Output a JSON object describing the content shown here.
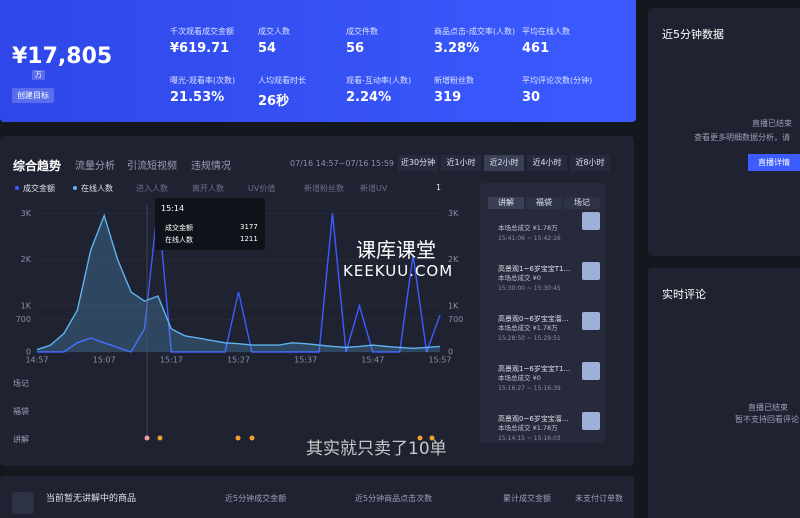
{
  "header": {
    "amount": "¥17,805",
    "amount_unit": "万",
    "button": "创建目标",
    "metrics": [
      {
        "label": "千次观看成交金额",
        "value": "¥619.71"
      },
      {
        "label": "成交人数",
        "value": "54"
      },
      {
        "label": "成交件数",
        "value": "56"
      },
      {
        "label": "商品点击-成交率(人数)",
        "value": "3.28%"
      },
      {
        "label": "平均在线人数",
        "value": "461"
      },
      {
        "label": "曝光-观看率(次数)",
        "value": "21.53%"
      },
      {
        "label": "人均观看时长",
        "value": "26秒"
      },
      {
        "label": "观看-互动率(人数)",
        "value": "2.24%"
      },
      {
        "label": "新增粉丝数",
        "value": "319"
      },
      {
        "label": "平均评论次数(分钟)",
        "value": "30"
      }
    ]
  },
  "tabs": [
    "综合趋势",
    "流量分析",
    "引流短视频",
    "违规情况"
  ],
  "date_range": "07/16 14:57~07/16 15:59",
  "ranges": [
    "近30分钟",
    "近1小时",
    "近2小时",
    "近4小时",
    "近8小时"
  ],
  "extra_legend": [
    "进入人数",
    "离开人数",
    "UV价值",
    "新增粉丝数",
    "新增UV"
  ],
  "pager": "1",
  "event_rows": [
    "场记",
    "福袋",
    "讲解"
  ],
  "tooltip": {
    "time": "15:14",
    "items": [
      {
        "name": "成交金额",
        "value": "3177"
      },
      {
        "name": "在线人数",
        "value": "1211"
      }
    ]
  },
  "chart_data": {
    "type": "line",
    "categories": [
      "14:57",
      null,
      null,
      null,
      null,
      "15:07",
      null,
      null,
      null,
      null,
      "15:17",
      null,
      null,
      null,
      null,
      "15:27",
      null,
      null,
      null,
      null,
      "15:37",
      null,
      null,
      null,
      null,
      "15:47",
      null,
      null,
      null,
      null,
      "15:57"
    ],
    "series": [
      {
        "name": "成交金额",
        "color": "#3d5cff",
        "values": [
          0,
          0,
          0,
          200,
          300,
          200,
          100,
          0,
          500,
          3177,
          0,
          0,
          0,
          0,
          0,
          1300,
          0,
          0,
          0,
          0,
          0,
          0,
          3000,
          0,
          1000,
          0,
          0,
          0,
          2100,
          0,
          800
        ]
      },
      {
        "name": "在线人数",
        "color": "#5fb4f0",
        "axis": "y2",
        "values": [
          50,
          150,
          400,
          900,
          2200,
          2950,
          2000,
          1300,
          1100,
          1211,
          500,
          350,
          300,
          250,
          200,
          180,
          150,
          150,
          150,
          200,
          180,
          150,
          120,
          100,
          120,
          150,
          120,
          100,
          80,
          100,
          120
        ]
      }
    ],
    "ylim": [
      0,
      3200
    ],
    "yticks": [
      0,
      700,
      {
        "value": 1000,
        "label": "1K"
      },
      {
        "value": 2000,
        "label": "2K"
      },
      {
        "value": 3000,
        "label": "3K"
      }
    ],
    "y2lim": [
      0,
      3200
    ],
    "y2ticks": [
      0,
      700,
      {
        "value": 1000,
        "label": "1K"
      },
      {
        "value": 2000,
        "label": "2K"
      },
      {
        "value": 3000,
        "label": "3K"
      }
    ],
    "grid": true
  },
  "side_list": {
    "tabs": [
      "讲解",
      "福袋",
      "场记"
    ],
    "items": [
      {
        "title": null,
        "sales": "本场总成交 ¥1.78万",
        "time": "15:41:06 ~ 15:42:16"
      },
      {
        "title": "高景观1~6岁宝宝T1...",
        "sales": "本场总成交 ¥0",
        "time": "15:30:00 ~ 15:30:45"
      },
      {
        "title": "高景观0~6岁宝宝溜...",
        "sales": "本场总成交 ¥1.78万",
        "time": "15:28:50 ~ 15:29:51"
      },
      {
        "title": "高景观1~6岁宝宝T1...",
        "sales": "本场总成交 ¥0",
        "time": "15:16:27 ~ 15:16:39"
      },
      {
        "title": "高景观0~6岁宝宝溜...",
        "sales": "本场总成交 ¥1.78万",
        "time": "15:14:15 ~ 15:16:03"
      }
    ]
  },
  "panel_recent": {
    "title": "近5分钟数据",
    "status": "直播已结束",
    "hint": "查看更多明细数据分析，请",
    "button": "直播详情"
  },
  "panel_comments": {
    "title": "实时评论",
    "status": "直播已结束",
    "hint": "暂不支持回看评论"
  },
  "watermark": {
    "cn": "课库课堂",
    "en": "KEEKUU.COM"
  },
  "subtitle": "其实就只卖了10单",
  "bottom": {
    "product": "当前暂无讲解中的商品",
    "columns": [
      "近5分钟成交金额",
      "近5分钟商品点击次数",
      "累计成交金额",
      "未支付订单数"
    ]
  }
}
